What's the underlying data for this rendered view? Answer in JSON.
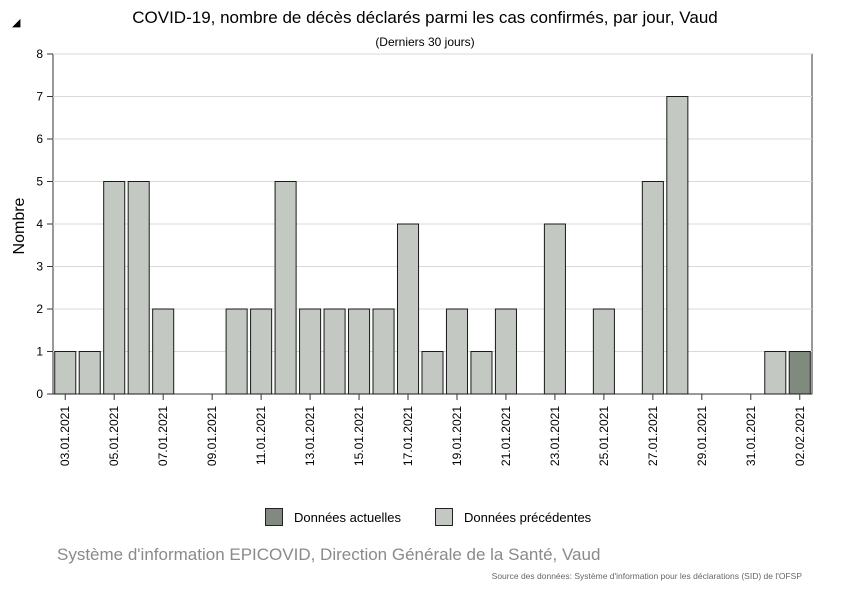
{
  "chart_data": {
    "type": "bar",
    "title": "COVID-19, nombre de décès déclarés parmi les cas confirmés, par jour, Vaud",
    "subtitle": "(Derniers 30 jours)",
    "ylabel": "Nombre",
    "xlabel": "",
    "ylim": [
      0,
      8
    ],
    "yticks": [
      0,
      1,
      2,
      3,
      4,
      5,
      6,
      7,
      8
    ],
    "grid": true,
    "legend_position": "bottom",
    "categories": [
      "03.01.2021",
      "04.01.2021",
      "05.01.2021",
      "06.01.2021",
      "07.01.2021",
      "08.01.2021",
      "09.01.2021",
      "10.01.2021",
      "11.01.2021",
      "12.01.2021",
      "13.01.2021",
      "14.01.2021",
      "15.01.2021",
      "16.01.2021",
      "17.01.2021",
      "18.01.2021",
      "19.01.2021",
      "20.01.2021",
      "21.01.2021",
      "22.01.2021",
      "23.01.2021",
      "24.01.2021",
      "25.01.2021",
      "26.01.2021",
      "27.01.2021",
      "28.01.2021",
      "29.01.2021",
      "30.01.2021",
      "31.01.2021",
      "01.02.2021",
      "02.02.2021"
    ],
    "xtick_labels": [
      "03.01.2021",
      "05.01.2021",
      "07.01.2021",
      "09.01.2021",
      "11.01.2021",
      "13.01.2021",
      "15.01.2021",
      "17.01.2021",
      "19.01.2021",
      "21.01.2021",
      "23.01.2021",
      "25.01.2021",
      "27.01.2021",
      "29.01.2021",
      "31.01.2021",
      "02.02.2021"
    ],
    "values": [
      1,
      1,
      5,
      5,
      2,
      0,
      0,
      2,
      2,
      5,
      2,
      2,
      2,
      2,
      4,
      1,
      2,
      1,
      2,
      0,
      4,
      0,
      2,
      0,
      5,
      7,
      0,
      0,
      0,
      1,
      1
    ],
    "current_index": 30,
    "series": [
      {
        "name": "Données actuelles",
        "color": "#808a7f"
      },
      {
        "name": "Données précédentes",
        "color": "#c3c8c2"
      }
    ]
  },
  "page": {
    "footer": "Système d'information EPICOVID, Direction Générale de la Santé, Vaud",
    "source": "Source des données: Système d'information pour les déclarations (SID) de l'OFSP",
    "cursor_icon": "arrow-cursor-icon"
  }
}
